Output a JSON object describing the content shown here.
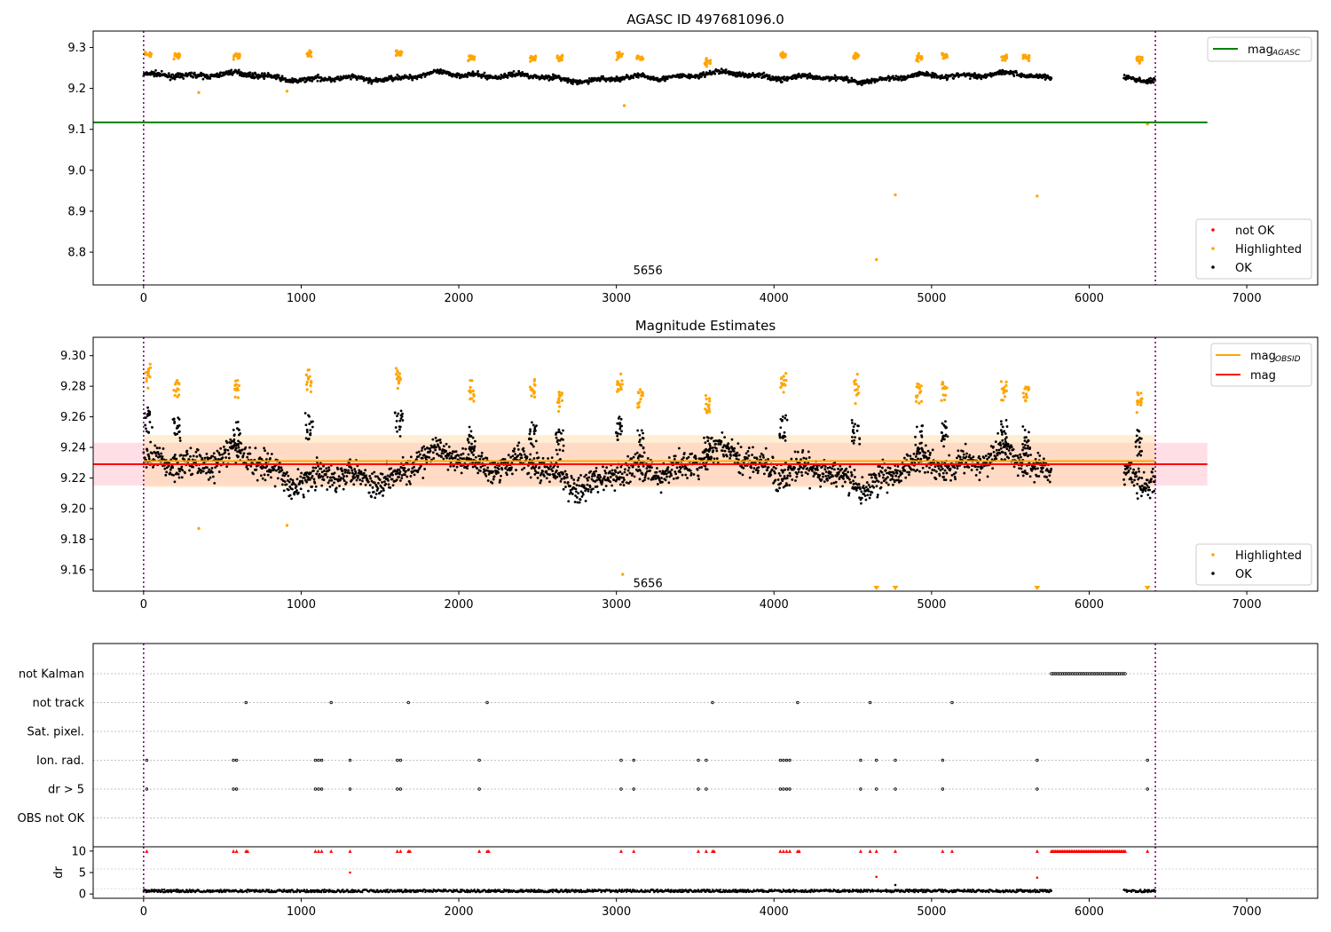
{
  "chart_data": [
    {
      "type": "scatter",
      "title": "AGASC ID 497681096.0",
      "xlim": [
        -320,
        7450
      ],
      "ylim": [
        8.72,
        9.34
      ],
      "xticks": [
        0,
        1000,
        2000,
        3000,
        4000,
        5000,
        6000,
        7000
      ],
      "yticks": [
        8.8,
        8.9,
        9.0,
        9.1,
        9.2,
        9.3
      ],
      "ytick_labels": [
        "8.8",
        "8.9",
        "9.0",
        "9.1",
        "9.2",
        "9.3"
      ],
      "annotation": {
        "text": "5656",
        "x": 3200,
        "y": 8.755
      },
      "vlines": [
        0,
        6420
      ],
      "hlines": [
        {
          "name": "mag_AGASC",
          "y": 9.117,
          "x0": -320,
          "x1": 6750,
          "color": "#008000"
        }
      ],
      "legend_top": {
        "position": "top-right",
        "entries": [
          {
            "label": "mag",
            "sub": "AGASC",
            "color": "#008000"
          }
        ]
      },
      "legend_bottom": {
        "position": "bottom-right",
        "entries": [
          {
            "label": "not OK",
            "color": "#ff0000"
          },
          {
            "label": "Highlighted",
            "color": "#ffa500"
          },
          {
            "label": "OK",
            "color": "#000000"
          }
        ]
      },
      "series": [
        {
          "name": "OK",
          "color": "#000000",
          "baseline": 9.228,
          "spread": 0.012,
          "segments": [
            [
              0,
              5760
            ],
            [
              6220,
              6420
            ]
          ]
        },
        {
          "name": "Highlighted",
          "color": "#ffa500",
          "clusters": [
            {
              "x": 30,
              "y": 9.28
            },
            {
              "x": 210,
              "y": 9.28
            },
            {
              "x": 590,
              "y": 9.28
            },
            {
              "x": 1050,
              "y": 9.285
            },
            {
              "x": 1620,
              "y": 9.285
            },
            {
              "x": 2080,
              "y": 9.275
            },
            {
              "x": 2470,
              "y": 9.275
            },
            {
              "x": 2640,
              "y": 9.275
            },
            {
              "x": 3020,
              "y": 9.28
            },
            {
              "x": 3150,
              "y": 9.275
            },
            {
              "x": 3580,
              "y": 9.265
            },
            {
              "x": 4060,
              "y": 9.28
            },
            {
              "x": 4520,
              "y": 9.28
            },
            {
              "x": 4920,
              "y": 9.275
            },
            {
              "x": 5080,
              "y": 9.28
            },
            {
              "x": 5460,
              "y": 9.275
            },
            {
              "x": 5600,
              "y": 9.275
            },
            {
              "x": 6320,
              "y": 9.27
            }
          ],
          "outliers": [
            {
              "x": 350,
              "y": 9.19
            },
            {
              "x": 910,
              "y": 9.193
            },
            {
              "x": 3050,
              "y": 9.158
            },
            {
              "x": 4650,
              "y": 8.782
            },
            {
              "x": 4770,
              "y": 8.94
            },
            {
              "x": 5670,
              "y": 8.937
            },
            {
              "x": 6370,
              "y": 9.113
            }
          ]
        }
      ]
    },
    {
      "type": "scatter",
      "title": "Magnitude Estimates",
      "xlim": [
        -320,
        7450
      ],
      "ylim": [
        9.146,
        9.312
      ],
      "xticks": [
        0,
        1000,
        2000,
        3000,
        4000,
        5000,
        6000,
        7000
      ],
      "yticks": [
        9.16,
        9.18,
        9.2,
        9.22,
        9.24,
        9.26,
        9.28,
        9.3
      ],
      "ytick_labels": [
        "9.16",
        "9.18",
        "9.20",
        "9.22",
        "9.24",
        "9.26",
        "9.28",
        "9.30"
      ],
      "annotation": {
        "text": "5656",
        "x": 3200,
        "y": 9.151
      },
      "vlines": [
        0,
        6420
      ],
      "bands": [
        {
          "name": "mag band",
          "y0": 9.215,
          "y1": 9.243,
          "x0": -320,
          "x1": 6750,
          "color": "#ffc0cb",
          "opacity": 0.5
        },
        {
          "name": "mag_OBSID band",
          "y0": 9.214,
          "y1": 9.248,
          "x0": 0,
          "x1": 6420,
          "color": "#ffd8a0",
          "opacity": 0.45
        }
      ],
      "hlines": [
        {
          "name": "mag_OBSID",
          "y": 9.231,
          "x0": 0,
          "x1": 6420,
          "color": "#ffa500"
        },
        {
          "name": "mag",
          "y": 9.229,
          "x0": -320,
          "x1": 6750,
          "color": "#ff0000"
        }
      ],
      "legend_top": {
        "position": "top-right",
        "entries": [
          {
            "label": "mag",
            "sub": "OBSID",
            "color": "#ffa500"
          },
          {
            "label": "mag",
            "sub": "",
            "color": "#ff0000"
          }
        ]
      },
      "legend_bottom": {
        "position": "bottom-right",
        "entries": [
          {
            "label": "Highlighted",
            "color": "#ffa500"
          },
          {
            "label": "OK",
            "color": "#000000"
          }
        ]
      },
      "series": [
        {
          "name": "OK",
          "color": "#000000",
          "baseline": 9.226,
          "spread": 0.013,
          "segments": [
            [
              0,
              5760
            ],
            [
              6220,
              6420
            ]
          ]
        },
        {
          "name": "Highlighted",
          "color": "#ffa500",
          "clusters": [
            {
              "x": 30,
              "y": 9.287
            },
            {
              "x": 210,
              "y": 9.28
            },
            {
              "x": 590,
              "y": 9.278
            },
            {
              "x": 1050,
              "y": 9.283
            },
            {
              "x": 1620,
              "y": 9.285
            },
            {
              "x": 2080,
              "y": 9.275
            },
            {
              "x": 2470,
              "y": 9.278
            },
            {
              "x": 2640,
              "y": 9.273
            },
            {
              "x": 3020,
              "y": 9.282
            },
            {
              "x": 3150,
              "y": 9.272
            },
            {
              "x": 3580,
              "y": 9.268
            },
            {
              "x": 4060,
              "y": 9.282
            },
            {
              "x": 4520,
              "y": 9.28
            },
            {
              "x": 4920,
              "y": 9.275
            },
            {
              "x": 5080,
              "y": 9.278
            },
            {
              "x": 5460,
              "y": 9.278
            },
            {
              "x": 5600,
              "y": 9.275
            },
            {
              "x": 6320,
              "y": 9.272
            }
          ],
          "outliers": [
            {
              "x": 350,
              "y": 9.187
            },
            {
              "x": 910,
              "y": 9.189
            },
            {
              "x": 3040,
              "y": 9.157
            }
          ],
          "below_markers": [
            4650,
            4770,
            5670,
            6370
          ]
        }
      ]
    },
    {
      "type": "scatter",
      "title": "",
      "xlim": [
        -320,
        7450
      ],
      "xticks": [
        0,
        1000,
        2000,
        3000,
        4000,
        5000,
        6000,
        7000
      ],
      "vlines": [
        0,
        6420
      ],
      "flag_rows": [
        "not Kalman",
        "not track",
        "Sat. pixel.",
        "Ion. rad.",
        "dr > 5",
        "OBS not OK"
      ],
      "flags": {
        "not Kalman": [
          [
            5760,
            6230
          ]
        ],
        "not track": [
          650,
          1190,
          1680,
          2180,
          3610,
          4150,
          4610,
          5130
        ],
        "Sat. pixel.": [],
        "Ion. rad.": [
          20,
          570,
          590,
          1090,
          1110,
          1130,
          1310,
          1610,
          1630,
          2130,
          3030,
          3110,
          3520,
          3570,
          4040,
          4060,
          4080,
          4100,
          4550,
          4650,
          4770,
          5070,
          5670,
          6370
        ],
        "dr > 5": [
          20,
          570,
          590,
          1090,
          1110,
          1130,
          1310,
          1610,
          1630,
          2130,
          3030,
          3110,
          3520,
          3570,
          4040,
          4060,
          4080,
          4100,
          4550,
          4650,
          4770,
          5070,
          5670,
          6370
        ],
        "OBS not OK": []
      },
      "dr_panel": {
        "ylabel": "dr",
        "ylim": [
          -1,
          11
        ],
        "yticks": [
          0,
          5,
          10
        ],
        "ytick_labels": [
          "0",
          "5",
          "10"
        ],
        "red_x": [
          20,
          570,
          590,
          650,
          660,
          1090,
          1110,
          1130,
          1190,
          1310,
          1610,
          1630,
          1680,
          1690,
          2130,
          2180,
          2190,
          3030,
          3110,
          3520,
          3570,
          3610,
          3620,
          4040,
          4060,
          4080,
          4100,
          4150,
          4160,
          4550,
          4610,
          4650,
          4770,
          5070,
          5130,
          5670,
          6370
        ],
        "red_band": [
          5760,
          6230
        ],
        "mid_points": [
          {
            "x": 1310,
            "y": 5
          },
          {
            "x": 4650,
            "y": 4
          },
          {
            "x": 5670,
            "y": 3.8
          },
          {
            "x": 4770,
            "y": 2.1
          }
        ],
        "black_segments": [
          [
            0,
            5760
          ],
          [
            6220,
            6420
          ]
        ]
      }
    }
  ]
}
